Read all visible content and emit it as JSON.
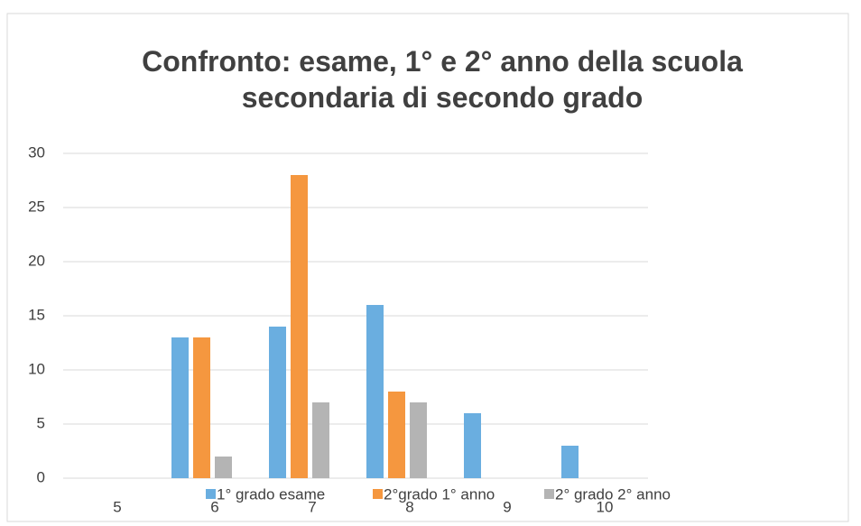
{
  "chart_data": {
    "type": "bar",
    "title": "Confronto: esame, 1°  e 2° anno della scuola secondaria di secondo grado",
    "categories": [
      "5",
      "6",
      "7",
      "8",
      "9",
      "10"
    ],
    "series": [
      {
        "name": "1° grado esame",
        "color": "#6aaee0",
        "values": [
          0,
          13,
          14,
          16,
          6,
          3
        ]
      },
      {
        "name": "2°grado 1° anno",
        "color": "#f5973f",
        "values": [
          0,
          13,
          28,
          8,
          0,
          0
        ]
      },
      {
        "name": "2° grado 2° anno",
        "color": "#b4b4b4",
        "values": [
          0,
          2,
          7,
          7,
          0,
          0
        ]
      }
    ],
    "ylim": [
      0,
      30
    ],
    "yticks": [
      0,
      5,
      10,
      15,
      20,
      25,
      30
    ],
    "grid": true,
    "legend": "bottom"
  }
}
